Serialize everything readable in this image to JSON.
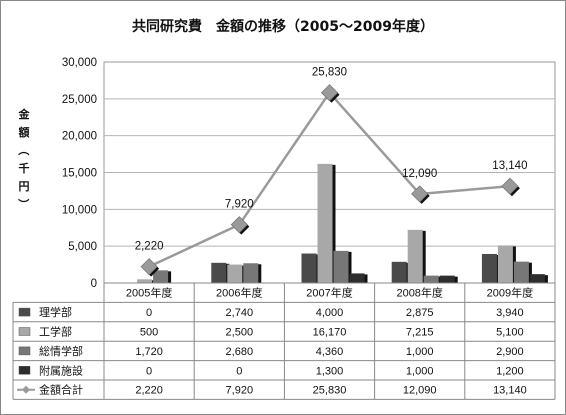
{
  "chart_data": {
    "type": "bar",
    "title": "共同研究費　金額の推移（2005～2009年度）",
    "ylabel": "金額（千円）",
    "ylim": [
      0,
      30000
    ],
    "yticks": [
      "0",
      "5,000",
      "10,000",
      "15,000",
      "20,000",
      "25,000",
      "30,000"
    ],
    "categories": [
      "2005年度",
      "2006年度",
      "2007年度",
      "2008年度",
      "2009年度"
    ],
    "grid": true,
    "legend": "data-table",
    "series": [
      {
        "name": "理学部",
        "kind": "bar",
        "color": "#4a4a4a",
        "values": [
          0,
          2740,
          4000,
          2875,
          3940
        ],
        "labels": [
          "0",
          "2,740",
          "4,000",
          "2,875",
          "3,940"
        ]
      },
      {
        "name": "工学部",
        "kind": "bar",
        "color": "#a8a8a8",
        "values": [
          500,
          2500,
          16170,
          7215,
          5100
        ],
        "labels": [
          "500",
          "2,500",
          "16,170",
          "7,215",
          "5,100"
        ]
      },
      {
        "name": "総情学部",
        "kind": "bar",
        "color": "#777777",
        "values": [
          1720,
          2680,
          4360,
          1000,
          2900
        ],
        "labels": [
          "1,720",
          "2,680",
          "4,360",
          "1,000",
          "2,900"
        ]
      },
      {
        "name": "附属施設",
        "kind": "bar",
        "color": "#2e2e2e",
        "values": [
          0,
          0,
          1300,
          1000,
          1200
        ],
        "labels": [
          "0",
          "0",
          "1,300",
          "1,000",
          "1,200"
        ]
      },
      {
        "name": "金額合計",
        "kind": "line",
        "color": "#9a9a9a",
        "values": [
          2220,
          7920,
          25830,
          12090,
          13140
        ],
        "labels": [
          "2,220",
          "7,920",
          "25,830",
          "12,090",
          "13,140"
        ]
      }
    ]
  }
}
